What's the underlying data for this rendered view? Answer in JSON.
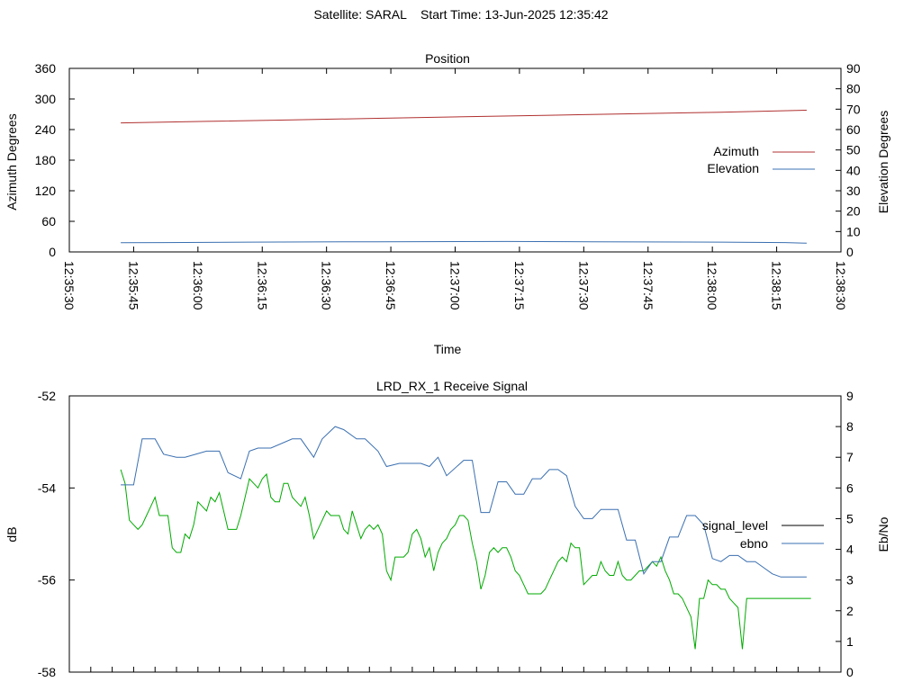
{
  "header": {
    "satellite_label": "Satellite: SARAL",
    "start_time_label": "Start Time: 13-Jun-2025 12:35:42"
  },
  "colors": {
    "azimuth": "#b03030",
    "elevation": "#3a6fb0",
    "signal_level": "#000000",
    "ebno": "#3a6fb0",
    "signal_level_trace": "#00aa00"
  },
  "chart_data": [
    {
      "type": "line",
      "title": "Position",
      "xlabel": "Time",
      "ylabel": "Azimuth Degrees",
      "y2label": "Elevation Degrees",
      "ylim": [
        0,
        360
      ],
      "y2lim": [
        0,
        90
      ],
      "y_ticks": [
        0,
        60,
        120,
        180,
        240,
        300,
        360
      ],
      "y2_ticks": [
        0,
        10,
        20,
        30,
        40,
        50,
        60,
        70,
        80,
        90
      ],
      "x_range_sec": [
        -12,
        168
      ],
      "x_ticks": [
        {
          "t": -12,
          "label": "12:35:30"
        },
        {
          "t": 3,
          "label": "12:35:45"
        },
        {
          "t": 18,
          "label": "12:36:00"
        },
        {
          "t": 33,
          "label": "12:36:15"
        },
        {
          "t": 48,
          "label": "12:36:30"
        },
        {
          "t": 63,
          "label": "12:36:45"
        },
        {
          "t": 78,
          "label": "12:37:00"
        },
        {
          "t": 93,
          "label": "12:37:15"
        },
        {
          "t": 108,
          "label": "12:37:30"
        },
        {
          "t": 123,
          "label": "12:37:45"
        },
        {
          "t": 138,
          "label": "12:38:00"
        },
        {
          "t": 153,
          "label": "12:38:15"
        },
        {
          "t": 168,
          "label": "12:38:30"
        }
      ],
      "legend_position": "right",
      "series": [
        {
          "name": "Azimuth",
          "axis": "y",
          "x": [
            0,
            20,
            40,
            60,
            80,
            100,
            120,
            140,
            160
          ],
          "values": [
            253,
            256,
            259,
            262,
            265,
            268,
            271,
            274,
            278
          ]
        },
        {
          "name": "Elevation",
          "axis": "y2",
          "x": [
            0,
            10,
            30,
            60,
            90,
            110,
            140,
            155,
            160
          ],
          "values": [
            4.5,
            4.6,
            4.8,
            5.0,
            5.1,
            5.0,
            4.8,
            4.6,
            4.3
          ]
        }
      ]
    },
    {
      "type": "line",
      "title": "LRD_RX_1 Receive Signal",
      "ylabel": "dB",
      "y2label": "Eb/No",
      "ylim": [
        -58,
        -52
      ],
      "y2lim": [
        0,
        9
      ],
      "y_ticks": [
        -58,
        -56,
        -54,
        -52
      ],
      "y2_ticks": [
        0,
        1,
        2,
        3,
        4,
        5,
        6,
        7,
        8,
        9
      ],
      "x_range_sec": [
        -12,
        168
      ],
      "x_minor_step": 5,
      "legend_position": "right",
      "legend_series": [
        "signal_level",
        "ebno"
      ],
      "series": [
        {
          "name": "signal_level",
          "axis": "y",
          "x": [
            0,
            1,
            2,
            3,
            4,
            5,
            6,
            7,
            8,
            9,
            10,
            11,
            12,
            13,
            14,
            15,
            16,
            17,
            18,
            19,
            20,
            21,
            22,
            23,
            24,
            25,
            26,
            27,
            28,
            29,
            30,
            31,
            32,
            33,
            34,
            35,
            36,
            37,
            38,
            39,
            40,
            41,
            42,
            43,
            44,
            45,
            46,
            47,
            48,
            49,
            50,
            51,
            52,
            53,
            54,
            55,
            56,
            57,
            58,
            59,
            60,
            61,
            62,
            63,
            64,
            65,
            66,
            67,
            68,
            69,
            70,
            71,
            72,
            73,
            74,
            75,
            76,
            77,
            78,
            79,
            80,
            81,
            82,
            83,
            84,
            85,
            86,
            87,
            88,
            89,
            90,
            91,
            92,
            93,
            94,
            95,
            96,
            97,
            98,
            99,
            100,
            101,
            102,
            103,
            104,
            105,
            106,
            107,
            108,
            109,
            110,
            111,
            112,
            113,
            114,
            115,
            116,
            117,
            118,
            119,
            120,
            121,
            122,
            123,
            124,
            125,
            126,
            127,
            128,
            129,
            130,
            131,
            132,
            133,
            134,
            135,
            136,
            137,
            138,
            139,
            140,
            141,
            142,
            143,
            144,
            145,
            146,
            147,
            148,
            149,
            150,
            151,
            152,
            153,
            154,
            155,
            156,
            157,
            158,
            159,
            160,
            161
          ],
          "values": [
            -53.6,
            -53.9,
            -54.7,
            -54.8,
            -54.9,
            -54.8,
            -54.6,
            -54.4,
            -54.2,
            -54.6,
            -54.6,
            -54.6,
            -55.3,
            -55.4,
            -55.4,
            -55.0,
            -55.1,
            -54.8,
            -54.3,
            -54.4,
            -54.5,
            -54.2,
            -54.3,
            -54.1,
            -54.5,
            -54.9,
            -54.9,
            -54.9,
            -54.6,
            -54.2,
            -53.8,
            -53.9,
            -54.0,
            -53.8,
            -53.7,
            -54.2,
            -54.3,
            -54.3,
            -53.9,
            -53.9,
            -54.2,
            -54.3,
            -54.4,
            -54.2,
            -54.6,
            -55.1,
            -54.9,
            -54.7,
            -54.5,
            -54.6,
            -54.6,
            -54.6,
            -54.9,
            -55.0,
            -54.5,
            -54.8,
            -55.1,
            -54.9,
            -54.8,
            -54.9,
            -54.8,
            -55.0,
            -55.8,
            -56.0,
            -55.5,
            -55.5,
            -55.5,
            -55.4,
            -55.0,
            -54.9,
            -55.1,
            -55.5,
            -55.3,
            -55.8,
            -55.4,
            -55.2,
            -55.1,
            -54.9,
            -54.8,
            -54.6,
            -54.6,
            -54.7,
            -55.2,
            -55.6,
            -56.2,
            -55.9,
            -55.4,
            -55.3,
            -55.4,
            -55.3,
            -55.3,
            -55.5,
            -55.8,
            -55.9,
            -56.1,
            -56.3,
            -56.3,
            -56.3,
            -56.3,
            -56.2,
            -56.0,
            -55.8,
            -55.6,
            -55.5,
            -55.6,
            -55.2,
            -55.3,
            -55.3,
            -56.1,
            -56.0,
            -55.9,
            -55.9,
            -55.6,
            -55.8,
            -55.9,
            -55.9,
            -55.6,
            -55.9,
            -56.0,
            -56.0,
            -55.9,
            -55.8,
            -55.8,
            -55.7,
            -55.6,
            -55.7,
            -55.5,
            -55.8,
            -56.0,
            -56.3,
            -56.3,
            -56.4,
            -56.6,
            -56.8,
            -57.5,
            -56.4,
            -56.4,
            -56.0,
            -56.1,
            -56.1,
            -56.2,
            -56.2,
            -56.4,
            -56.5,
            -56.6,
            -57.5,
            -56.4,
            -56.4,
            -56.4,
            -56.4,
            -56.4,
            -56.4,
            -56.4,
            -56.4,
            -56.4,
            -56.4,
            -56.4,
            -56.4,
            -56.4,
            -56.4,
            -56.4,
            -56.4
          ]
        },
        {
          "name": "ebno",
          "axis": "y2",
          "x": [
            0,
            3,
            5,
            8,
            10,
            13,
            15,
            20,
            23,
            25,
            28,
            30,
            32,
            35,
            40,
            42,
            45,
            47,
            50,
            52,
            55,
            57,
            60,
            62,
            65,
            70,
            72,
            74,
            76,
            80,
            82,
            84,
            86,
            88,
            90,
            92,
            94,
            96,
            98,
            100,
            102,
            104,
            106,
            108,
            110,
            112,
            114,
            116,
            118,
            120,
            122,
            124,
            126,
            128,
            130,
            132,
            134,
            136,
            138,
            140,
            142,
            144,
            146,
            148,
            150,
            152,
            154,
            156,
            158,
            160
          ],
          "values": [
            6.1,
            6.1,
            7.6,
            7.6,
            7.1,
            7.0,
            7.0,
            7.2,
            7.2,
            6.5,
            6.3,
            7.2,
            7.3,
            7.3,
            7.6,
            7.6,
            7.0,
            7.6,
            8.0,
            7.9,
            7.6,
            7.6,
            7.2,
            6.7,
            6.8,
            6.8,
            6.7,
            7.0,
            6.4,
            6.9,
            6.9,
            5.2,
            5.2,
            6.2,
            6.2,
            5.8,
            5.8,
            6.3,
            6.3,
            6.6,
            6.6,
            6.4,
            5.4,
            5.0,
            5.0,
            5.3,
            5.3,
            5.3,
            4.3,
            4.3,
            3.2,
            3.6,
            3.6,
            4.4,
            4.4,
            5.1,
            5.1,
            4.8,
            3.7,
            3.6,
            3.8,
            3.8,
            3.6,
            3.6,
            3.4,
            3.2,
            3.1,
            3.1,
            3.1,
            3.1
          ]
        }
      ]
    }
  ]
}
